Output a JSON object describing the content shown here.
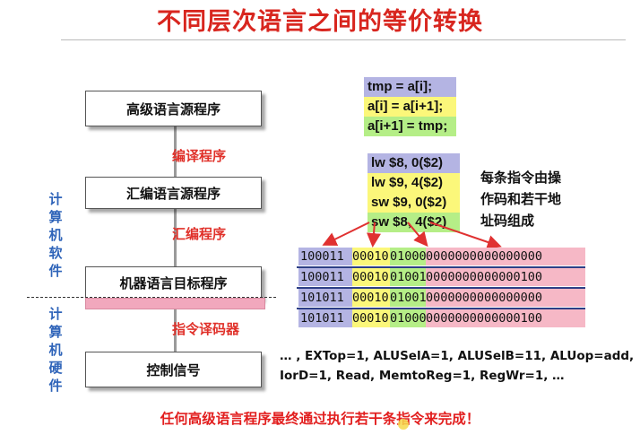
{
  "title": "不同层次语言之间的等价转换",
  "flow": {
    "boxes": [
      "高级语言源程序",
      "汇编语言源程序",
      "机器语言目标程序",
      "控制信号"
    ],
    "labels": [
      "编译程序",
      "汇编程序",
      "指令译码器"
    ]
  },
  "side_labels": {
    "software": "计算机软件",
    "hardware": "计算机硬件"
  },
  "high_level_code": [
    "tmp = a[i];",
    "a[i] = a[i+1];",
    "a[i+1] = tmp;"
  ],
  "asm_code": [
    "lw $8, 0($2)",
    "lw $9, 4($2)",
    "sw $9, 0($2)",
    "sw $8, 4($2)"
  ],
  "description": [
    "每条指令由操",
    "作码和若干地",
    "址码组成"
  ],
  "machine_code": [
    {
      "op": "100011",
      "rs": "00010",
      "rt": "01000",
      "imm": "0000000000000000"
    },
    {
      "op": "100011",
      "rs": "00010",
      "rt": "01001",
      "imm": "0000000000000100"
    },
    {
      "op": "101011",
      "rs": "00010",
      "rt": "01001",
      "imm": "0000000000000000"
    },
    {
      "op": "101011",
      "rs": "00010",
      "rt": "01000",
      "imm": "0000000000000100"
    }
  ],
  "control_signals": [
    "… , EXTop=1, ALUSelA=1, ALUSelB=11, ALUop=add,",
    "IorD=1, Read, MemtoReg=1, RegWr=1, …"
  ],
  "conclusion": "任何高级语言程序最终通过执行若干条指令来完成！",
  "colors": {
    "title_red": "#d8261f",
    "label_red": "#e0312a",
    "side_blue": "#2f64b9",
    "purple": "#b4b4e3",
    "yellow": "#fbf77a",
    "green": "#b5ee87",
    "pink": "#f6b8c6"
  }
}
